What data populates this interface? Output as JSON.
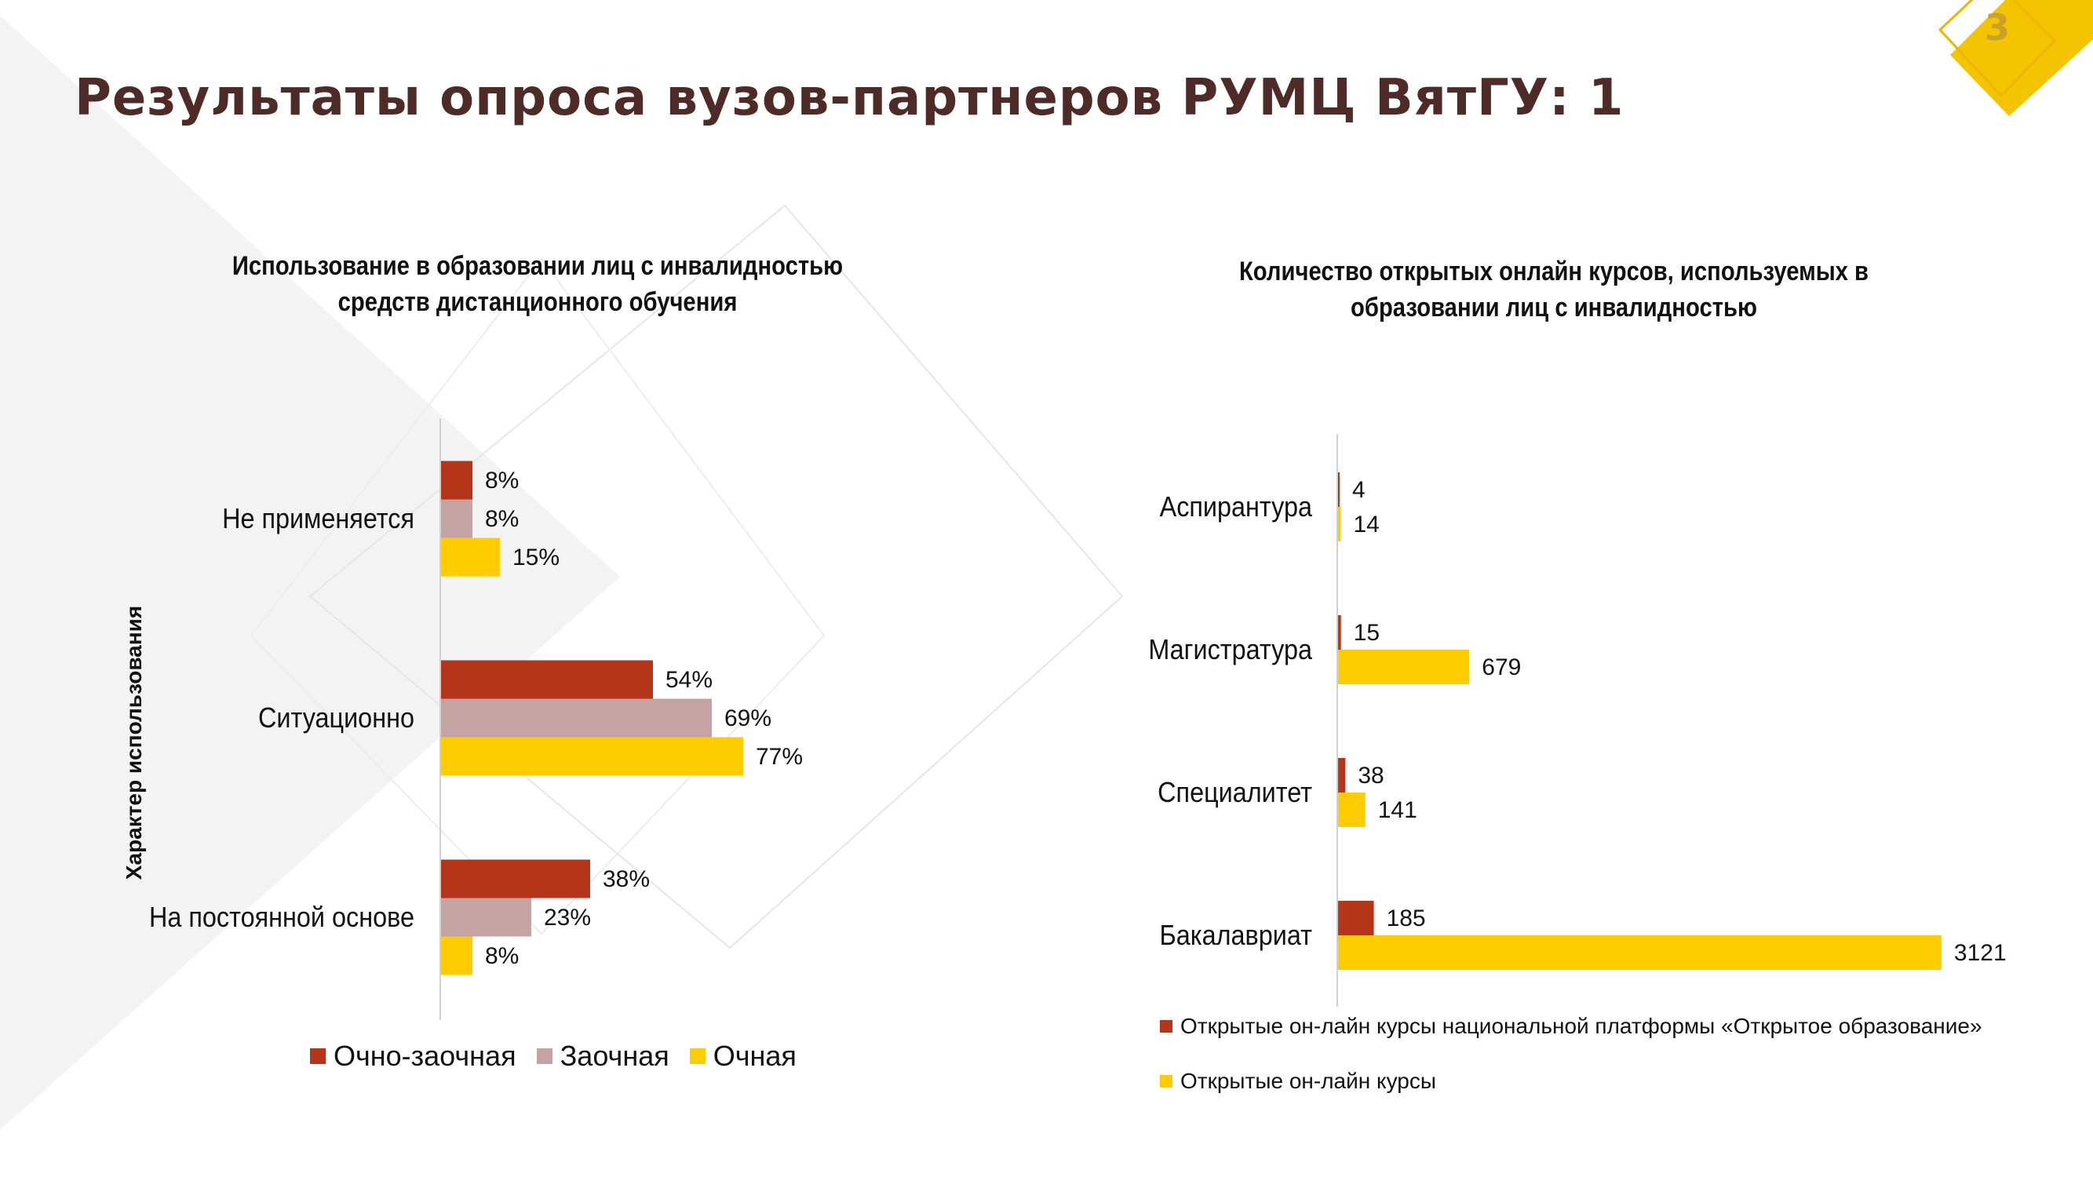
{
  "page": {
    "title": "Результаты опроса вузов-партнеров РУМЦ ВятГУ: 1",
    "number": "3"
  },
  "colors": {
    "ochno_zaochnaya": "#b5351a",
    "zaochnaya": "#c4a4a3",
    "ochnaya": "#ffcc00",
    "title": "#4e2b26",
    "accent": "#f5c400"
  },
  "chart_data": [
    {
      "type": "bar",
      "orientation": "horizontal",
      "title": "Использование в образовании лиц с инвалидностью средств дистанционного обучения",
      "title_lines": [
        "Использование в образовании лиц с инвалидностью",
        "средств дистанционного обучения"
      ],
      "ylabel": "Характер использования",
      "categories": [
        "Не применяется",
        "Ситуационно",
        "На постоянной основе"
      ],
      "unit": "%",
      "xlim": [
        0,
        100
      ],
      "series": [
        {
          "name": "Очно-заочная",
          "values": [
            8,
            54,
            38
          ],
          "color": "#b5351a"
        },
        {
          "name": "Заочная",
          "values": [
            8,
            69,
            23
          ],
          "color": "#c4a4a3"
        },
        {
          "name": "Очная",
          "values": [
            15,
            77,
            8
          ],
          "color": "#ffcc00"
        }
      ],
      "legend": "bottom",
      "grid": false
    },
    {
      "type": "bar",
      "orientation": "horizontal",
      "title": "Количество открытых онлайн курсов, используемых в образовании лиц с инвалидностью",
      "title_lines": [
        "Количество открытых онлайн курсов, используемых в",
        "образовании лиц с инвалидностью"
      ],
      "categories": [
        "Аспирантура",
        "Магистратура",
        "Специалитет",
        "Бакалавриат"
      ],
      "xlim": [
        0,
        3300
      ],
      "series": [
        {
          "name": "Открытые он-лайн курсы национальной платформы «Открытое образование»",
          "values": [
            4,
            15,
            38,
            185
          ],
          "color": "#b5351a"
        },
        {
          "name": "Открытые он-лайн курсы",
          "values": [
            14,
            679,
            141,
            3121
          ],
          "color": "#ffcc00"
        }
      ],
      "legend": "bottom",
      "grid": false
    }
  ]
}
